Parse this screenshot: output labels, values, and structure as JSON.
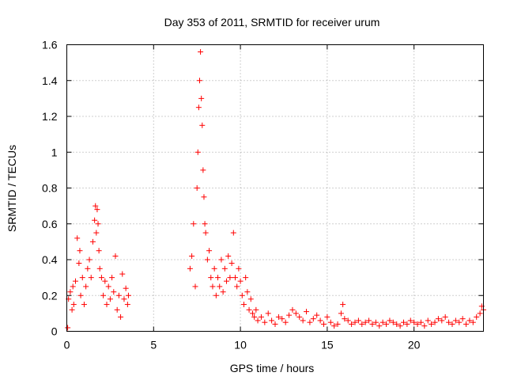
{
  "chart_data": {
    "type": "scatter",
    "title": "Day 353 of 2011, SRMTID for receiver urum",
    "xlabel": "GPS time / hours",
    "ylabel": "SRMTID / TECUs",
    "xlim": [
      0,
      24
    ],
    "ylim": [
      0,
      1.6
    ],
    "xticks": [
      0,
      5,
      10,
      15,
      20
    ],
    "xtick_labels": [
      "0",
      "5",
      "10",
      "15",
      "20"
    ],
    "yticks": [
      0,
      0.2,
      0.4,
      0.6,
      0.8,
      1.0,
      1.2,
      1.4,
      1.6
    ],
    "ytick_labels": [
      "0",
      "0.2",
      "0.4",
      "0.6",
      "0.8",
      "1",
      "1.2",
      "1.4",
      "1.6"
    ],
    "grid": true,
    "marker": "+",
    "color": "#ff0000",
    "series": [
      {
        "name": "SRMTID",
        "x": [
          0.05,
          0.1,
          0.2,
          0.3,
          0.35,
          0.4,
          0.5,
          0.6,
          0.7,
          0.75,
          0.8,
          0.9,
          1.0,
          1.1,
          1.2,
          1.3,
          1.4,
          1.5,
          1.6,
          1.65,
          1.7,
          1.75,
          1.8,
          1.85,
          1.9,
          2.0,
          2.1,
          2.2,
          2.3,
          2.4,
          2.5,
          2.6,
          2.7,
          2.8,
          2.9,
          3.0,
          3.1,
          3.2,
          3.3,
          3.4,
          3.5,
          3.55,
          7.1,
          7.2,
          7.3,
          7.4,
          7.5,
          7.55,
          7.6,
          7.65,
          7.7,
          7.75,
          7.8,
          7.85,
          7.9,
          7.95,
          8.0,
          8.1,
          8.2,
          8.3,
          8.4,
          8.5,
          8.6,
          8.7,
          8.8,
          8.9,
          9.0,
          9.1,
          9.2,
          9.3,
          9.4,
          9.5,
          9.6,
          9.7,
          9.8,
          9.9,
          10.0,
          10.1,
          10.2,
          10.3,
          10.4,
          10.5,
          10.6,
          10.7,
          10.8,
          10.9,
          11.0,
          11.2,
          11.4,
          11.6,
          11.8,
          12.0,
          12.2,
          12.4,
          12.6,
          12.8,
          13.0,
          13.2,
          13.4,
          13.6,
          13.8,
          14.0,
          14.2,
          14.4,
          14.6,
          14.8,
          15.0,
          15.2,
          15.4,
          15.6,
          15.8,
          15.9,
          16.0,
          16.2,
          16.4,
          16.6,
          16.8,
          17.0,
          17.2,
          17.4,
          17.6,
          17.8,
          18.0,
          18.2,
          18.4,
          18.6,
          18.8,
          19.0,
          19.2,
          19.4,
          19.6,
          19.8,
          20.0,
          20.2,
          20.4,
          20.6,
          20.8,
          21.0,
          21.2,
          21.4,
          21.6,
          21.8,
          22.0,
          22.2,
          22.4,
          22.6,
          22.8,
          23.0,
          23.2,
          23.4,
          23.6,
          23.8,
          23.9,
          24.0
        ],
        "y": [
          0.02,
          0.18,
          0.22,
          0.12,
          0.25,
          0.15,
          0.28,
          0.52,
          0.38,
          0.45,
          0.2,
          0.3,
          0.15,
          0.25,
          0.35,
          0.4,
          0.3,
          0.5,
          0.62,
          0.7,
          0.55,
          0.68,
          0.6,
          0.45,
          0.35,
          0.3,
          0.2,
          0.28,
          0.15,
          0.25,
          0.18,
          0.3,
          0.22,
          0.42,
          0.12,
          0.2,
          0.08,
          0.32,
          0.18,
          0.24,
          0.15,
          0.2,
          0.35,
          0.42,
          0.6,
          0.25,
          0.8,
          1.0,
          1.25,
          1.4,
          1.56,
          1.3,
          1.15,
          0.9,
          0.75,
          0.6,
          0.55,
          0.4,
          0.45,
          0.3,
          0.25,
          0.35,
          0.2,
          0.3,
          0.25,
          0.4,
          0.22,
          0.35,
          0.28,
          0.42,
          0.3,
          0.38,
          0.55,
          0.3,
          0.25,
          0.35,
          0.28,
          0.2,
          0.15,
          0.3,
          0.22,
          0.12,
          0.18,
          0.1,
          0.08,
          0.12,
          0.06,
          0.08,
          0.05,
          0.1,
          0.06,
          0.04,
          0.08,
          0.07,
          0.05,
          0.09,
          0.12,
          0.1,
          0.08,
          0.06,
          0.11,
          0.05,
          0.07,
          0.09,
          0.06,
          0.04,
          0.08,
          0.05,
          0.03,
          0.04,
          0.1,
          0.15,
          0.07,
          0.06,
          0.04,
          0.05,
          0.06,
          0.04,
          0.05,
          0.06,
          0.04,
          0.05,
          0.03,
          0.05,
          0.04,
          0.06,
          0.05,
          0.04,
          0.03,
          0.05,
          0.04,
          0.06,
          0.05,
          0.04,
          0.05,
          0.03,
          0.06,
          0.04,
          0.05,
          0.07,
          0.06,
          0.08,
          0.05,
          0.04,
          0.06,
          0.05,
          0.07,
          0.04,
          0.06,
          0.05,
          0.08,
          0.1,
          0.14,
          0.12
        ]
      }
    ]
  }
}
